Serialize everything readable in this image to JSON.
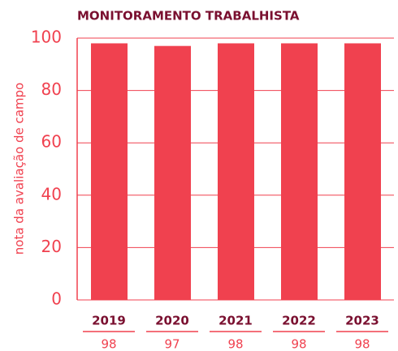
{
  "chart_data": {
    "type": "bar",
    "title": "MONITORAMENTO TRABALHISTA",
    "y_label": "nota da avaliação de campo",
    "categories": [
      "2019",
      "2020",
      "2021",
      "2022",
      "2023"
    ],
    "values": [
      98,
      97,
      98,
      98,
      98
    ],
    "color": "#f0414f",
    "ylim": [
      0,
      100
    ],
    "yticks": [
      0,
      20,
      40,
      60,
      80,
      100
    ],
    "grid": true
  }
}
